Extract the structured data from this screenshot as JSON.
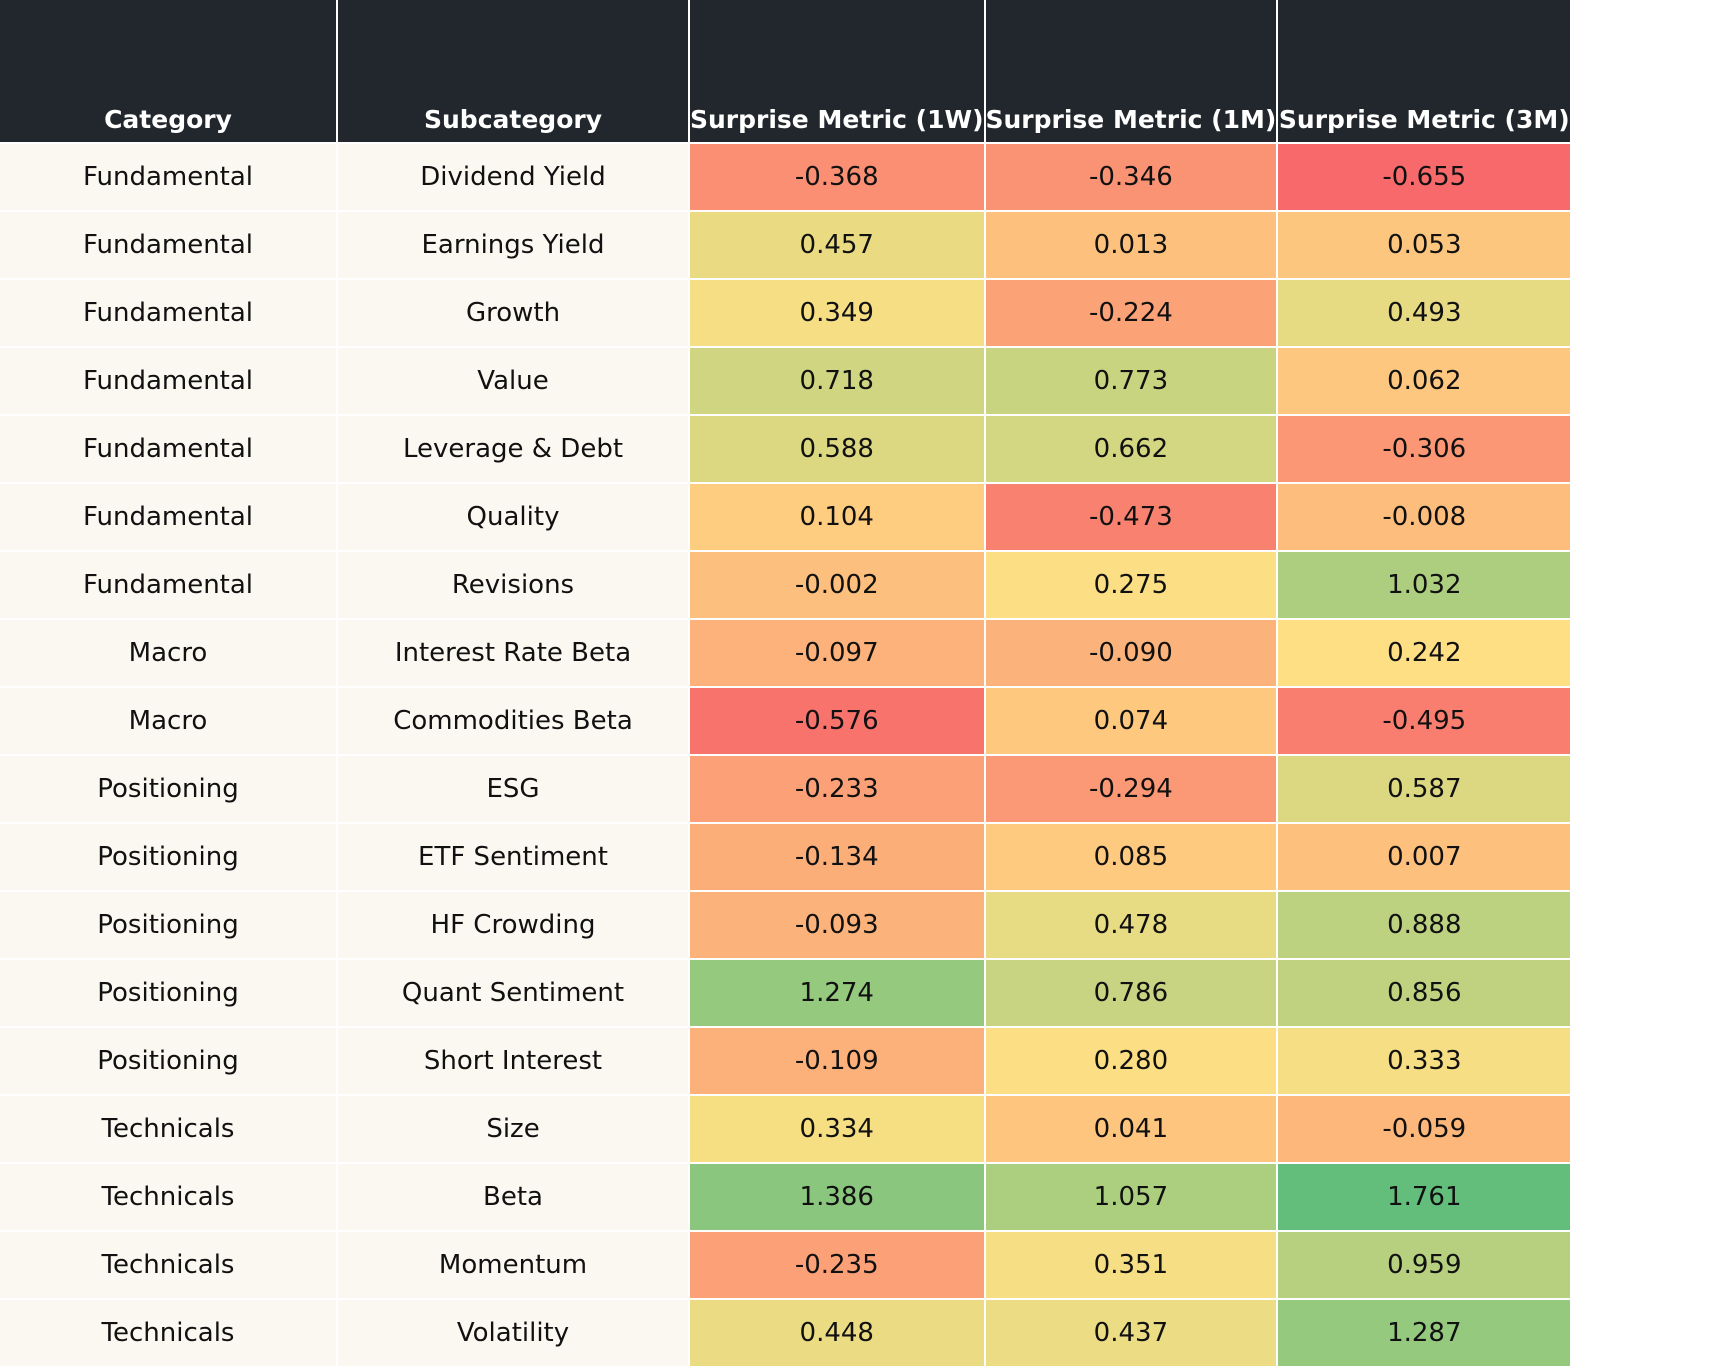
{
  "chart_data": {
    "type": "heatmap",
    "columns": [
      "Category",
      "Subcategory",
      "Surprise Metric (1W)",
      "Surprise Metric (1M)",
      "Surprise Metric (3M)"
    ],
    "rows": [
      {
        "category": "Fundamental",
        "subcategory": "Dividend Yield",
        "values": [
          "-0.368",
          "-0.346",
          "-0.655"
        ]
      },
      {
        "category": "Fundamental",
        "subcategory": "Earnings Yield",
        "values": [
          "0.457",
          "0.013",
          "0.053"
        ]
      },
      {
        "category": "Fundamental",
        "subcategory": "Growth",
        "values": [
          "0.349",
          "-0.224",
          "0.493"
        ]
      },
      {
        "category": "Fundamental",
        "subcategory": "Value",
        "values": [
          "0.718",
          "0.773",
          "0.062"
        ]
      },
      {
        "category": "Fundamental",
        "subcategory": "Leverage & Debt",
        "values": [
          "0.588",
          "0.662",
          "-0.306"
        ]
      },
      {
        "category": "Fundamental",
        "subcategory": "Quality",
        "values": [
          "0.104",
          "-0.473",
          "-0.008"
        ]
      },
      {
        "category": "Fundamental",
        "subcategory": "Revisions",
        "values": [
          "-0.002",
          "0.275",
          "1.032"
        ]
      },
      {
        "category": "Macro",
        "subcategory": "Interest Rate Beta",
        "values": [
          "-0.097",
          "-0.090",
          "0.242"
        ]
      },
      {
        "category": "Macro",
        "subcategory": "Commodities Beta",
        "values": [
          "-0.576",
          "0.074",
          "-0.495"
        ]
      },
      {
        "category": "Positioning",
        "subcategory": "ESG",
        "values": [
          "-0.233",
          "-0.294",
          "0.587"
        ]
      },
      {
        "category": "Positioning",
        "subcategory": "ETF Sentiment",
        "values": [
          "-0.134",
          "0.085",
          "0.007"
        ]
      },
      {
        "category": "Positioning",
        "subcategory": "HF Crowding",
        "values": [
          "-0.093",
          "0.478",
          "0.888"
        ]
      },
      {
        "category": "Positioning",
        "subcategory": "Quant Sentiment",
        "values": [
          "1.274",
          "0.786",
          "0.856"
        ]
      },
      {
        "category": "Positioning",
        "subcategory": "Short Interest",
        "values": [
          "-0.109",
          "0.280",
          "0.333"
        ]
      },
      {
        "category": "Technicals",
        "subcategory": "Size",
        "values": [
          "0.334",
          "0.041",
          "-0.059"
        ]
      },
      {
        "category": "Technicals",
        "subcategory": "Beta",
        "values": [
          "1.386",
          "1.057",
          "1.761"
        ]
      },
      {
        "category": "Technicals",
        "subcategory": "Momentum",
        "values": [
          "-0.235",
          "0.351",
          "0.959"
        ]
      },
      {
        "category": "Technicals",
        "subcategory": "Volatility",
        "values": [
          "0.448",
          "0.437",
          "1.287"
        ]
      }
    ],
    "color_scale": {
      "low": "#f8696b",
      "mid": "#ffe084",
      "high": "#63be7b"
    },
    "colors": {
      "header_bg": "#22272d",
      "header_text": "#ffffff",
      "label_bg": "#fbf8f1"
    }
  }
}
